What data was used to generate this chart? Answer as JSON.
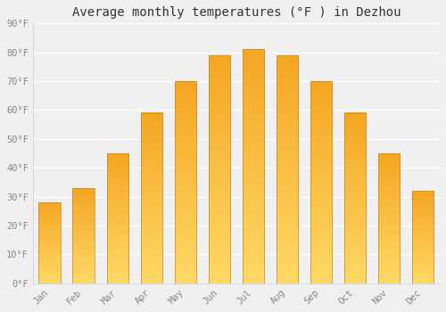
{
  "title": "Average monthly temperatures (°F ) in Dezhou",
  "months": [
    "Jan",
    "Feb",
    "Mar",
    "Apr",
    "May",
    "Jun",
    "Jul",
    "Aug",
    "Sep",
    "Oct",
    "Nov",
    "Dec"
  ],
  "values": [
    28,
    33,
    45,
    59,
    70,
    79,
    81,
    79,
    70,
    59,
    45,
    32
  ],
  "bar_color_top": "#F5A623",
  "bar_color_bottom": "#FFD966",
  "ylim": [
    0,
    90
  ],
  "yticks": [
    0,
    10,
    20,
    30,
    40,
    50,
    60,
    70,
    80,
    90
  ],
  "ytick_labels": [
    "0°F",
    "10°F",
    "20°F",
    "30°F",
    "40°F",
    "50°F",
    "60°F",
    "70°F",
    "80°F",
    "90°F"
  ],
  "background_color": "#F0F0F0",
  "grid_color": "#FFFFFF",
  "bar_edge_color": "#C8872A",
  "title_fontsize": 10,
  "tick_fontsize": 7.5,
  "bar_width": 0.65
}
